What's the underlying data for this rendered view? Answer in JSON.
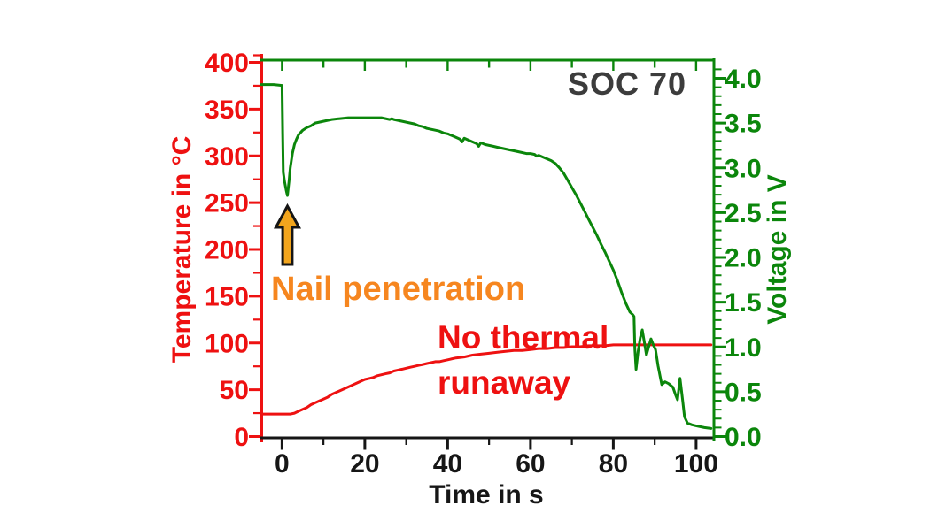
{
  "annotations": {
    "soc_label": "SOC 70",
    "nail_penetration": "Nail penetration",
    "no_thermal_line1": "No thermal",
    "no_thermal_line2": "runaway"
  },
  "colors": {
    "red": "#ee1111",
    "green": "#0b860b",
    "orange_text": "#f6861f",
    "arrow_fill": "#f2a51d",
    "arrow_outline": "#151515",
    "soc_gray": "#3c3c3c",
    "black": "#161616"
  },
  "chart_data": {
    "type": "line",
    "title": "",
    "x_axis": {
      "label": "Time in s",
      "range": [
        -5,
        104.3
      ],
      "tick_values": [
        0,
        20,
        40,
        60,
        80,
        100
      ],
      "tick_labels": [
        "0",
        "20",
        "40",
        "60",
        "80",
        "100"
      ],
      "minor_step": 10
    },
    "y_left": {
      "label": "Temperature in °C",
      "range": [
        0,
        400
      ],
      "tick_values": [
        0,
        50,
        100,
        150,
        200,
        250,
        300,
        350,
        400
      ],
      "tick_labels": [
        "0",
        "50",
        "100",
        "150",
        "200",
        "250",
        "300",
        "350",
        "400"
      ],
      "minor_step": 25
    },
    "y_right": {
      "label": "Voltage in V",
      "range": [
        0,
        4.0
      ],
      "tick_values": [
        0,
        0.5,
        1.0,
        1.5,
        2.0,
        2.5,
        3.0,
        3.5,
        4.0
      ],
      "tick_labels": [
        "0.0",
        "0.5",
        "1.0",
        "1.5",
        "2.0",
        "2.5",
        "3.0",
        "3.5",
        "4.0"
      ],
      "minor_step": 0.1
    },
    "grid": false,
    "legend": "none",
    "series": [
      {
        "name": "Temperature",
        "axis": "left",
        "color_key": "red",
        "points": [
          [
            -5,
            24
          ],
          [
            0,
            24
          ],
          [
            2,
            24
          ],
          [
            3,
            25
          ],
          [
            4,
            27
          ],
          [
            5,
            29
          ],
          [
            6,
            31
          ],
          [
            7,
            34
          ],
          [
            8,
            36
          ],
          [
            9,
            38
          ],
          [
            10,
            40
          ],
          [
            11,
            42
          ],
          [
            12,
            45
          ],
          [
            13,
            47
          ],
          [
            14,
            49
          ],
          [
            15,
            51
          ],
          [
            16,
            53
          ],
          [
            17,
            55
          ],
          [
            18,
            57
          ],
          [
            19,
            59
          ],
          [
            20,
            61
          ],
          [
            21,
            62
          ],
          [
            22,
            63
          ],
          [
            23,
            65
          ],
          [
            24,
            66
          ],
          [
            25,
            67
          ],
          [
            26,
            68
          ],
          [
            27,
            70
          ],
          [
            28,
            71
          ],
          [
            29,
            72
          ],
          [
            30,
            73
          ],
          [
            31,
            74
          ],
          [
            32,
            75
          ],
          [
            33,
            76
          ],
          [
            34,
            77
          ],
          [
            35,
            78
          ],
          [
            36,
            79
          ],
          [
            37,
            80
          ],
          [
            38,
            80
          ],
          [
            39,
            81
          ],
          [
            40,
            82
          ],
          [
            42,
            84
          ],
          [
            44,
            85
          ],
          [
            46,
            87
          ],
          [
            48,
            88
          ],
          [
            50,
            89
          ],
          [
            52,
            90
          ],
          [
            54,
            91
          ],
          [
            56,
            92
          ],
          [
            58,
            92
          ],
          [
            60,
            93
          ],
          [
            62,
            94
          ],
          [
            64,
            94
          ],
          [
            66,
            95
          ],
          [
            68,
            95
          ],
          [
            70,
            96
          ],
          [
            72,
            96
          ],
          [
            74,
            97
          ],
          [
            76,
            97
          ],
          [
            78,
            97
          ],
          [
            80,
            98
          ],
          [
            82,
            98
          ],
          [
            84,
            98
          ],
          [
            86,
            98
          ],
          [
            88,
            98
          ],
          [
            90,
            98
          ],
          [
            92,
            98
          ],
          [
            94,
            98
          ],
          [
            96,
            98
          ],
          [
            98,
            98
          ],
          [
            100,
            98
          ],
          [
            103.6,
            98
          ]
        ]
      },
      {
        "name": "Voltage",
        "axis": "right",
        "color_key": "green",
        "points": [
          [
            -5,
            3.93
          ],
          [
            -2,
            3.93
          ],
          [
            0,
            3.92
          ],
          [
            0.15,
            3.4
          ],
          [
            0.3,
            2.95
          ],
          [
            0.6,
            2.85
          ],
          [
            1,
            2.75
          ],
          [
            1.3,
            2.69
          ],
          [
            1.7,
            2.85
          ],
          [
            2,
            3.0
          ],
          [
            2.5,
            3.16
          ],
          [
            3,
            3.26
          ],
          [
            3.5,
            3.32
          ],
          [
            4,
            3.37
          ],
          [
            5,
            3.42
          ],
          [
            6,
            3.45
          ],
          [
            7,
            3.47
          ],
          [
            8,
            3.5
          ],
          [
            9,
            3.51
          ],
          [
            10,
            3.52
          ],
          [
            12,
            3.54
          ],
          [
            14,
            3.55
          ],
          [
            16,
            3.56
          ],
          [
            18,
            3.56
          ],
          [
            20,
            3.56
          ],
          [
            22,
            3.56
          ],
          [
            24,
            3.56
          ],
          [
            25,
            3.55
          ],
          [
            26,
            3.54
          ],
          [
            26.5,
            3.55
          ],
          [
            27,
            3.54
          ],
          [
            28,
            3.53
          ],
          [
            29,
            3.52
          ],
          [
            30,
            3.51
          ],
          [
            31,
            3.5
          ],
          [
            32,
            3.49
          ],
          [
            33,
            3.47
          ],
          [
            34,
            3.46
          ],
          [
            35,
            3.44
          ],
          [
            36,
            3.43
          ],
          [
            37,
            3.42
          ],
          [
            38,
            3.41
          ],
          [
            39,
            3.39
          ],
          [
            40,
            3.38
          ],
          [
            41,
            3.36
          ],
          [
            42,
            3.34
          ],
          [
            43,
            3.32
          ],
          [
            43.5,
            3.29
          ],
          [
            44,
            3.33
          ],
          [
            45,
            3.31
          ],
          [
            46,
            3.29
          ],
          [
            47,
            3.27
          ],
          [
            47.5,
            3.24
          ],
          [
            48,
            3.28
          ],
          [
            49,
            3.26
          ],
          [
            50,
            3.25
          ],
          [
            51,
            3.24
          ],
          [
            52,
            3.23
          ],
          [
            53,
            3.22
          ],
          [
            54,
            3.21
          ],
          [
            55,
            3.2
          ],
          [
            56,
            3.19
          ],
          [
            57,
            3.18
          ],
          [
            58,
            3.17
          ],
          [
            59,
            3.16
          ],
          [
            60,
            3.16
          ],
          [
            61,
            3.15
          ],
          [
            61.5,
            3.13
          ],
          [
            62,
            3.14
          ],
          [
            63,
            3.12
          ],
          [
            64,
            3.1
          ],
          [
            65,
            3.08
          ],
          [
            66,
            3.05
          ],
          [
            67,
            3.0
          ],
          [
            68,
            2.94
          ],
          [
            69,
            2.86
          ],
          [
            70,
            2.78
          ],
          [
            71,
            2.7
          ],
          [
            72,
            2.61
          ],
          [
            73,
            2.52
          ],
          [
            74,
            2.43
          ],
          [
            75,
            2.34
          ],
          [
            76,
            2.25
          ],
          [
            77,
            2.15
          ],
          [
            78,
            2.06
          ],
          [
            79,
            1.96
          ],
          [
            80,
            1.86
          ],
          [
            81,
            1.74
          ],
          [
            82,
            1.61
          ],
          [
            83,
            1.49
          ],
          [
            84,
            1.39
          ],
          [
            84.7,
            1.36
          ],
          [
            85,
            1.34
          ],
          [
            85.2,
            0.98
          ],
          [
            85.5,
            0.75
          ],
          [
            86,
            0.95
          ],
          [
            86.5,
            1.1
          ],
          [
            87,
            1.19
          ],
          [
            87.5,
            1.05
          ],
          [
            88,
            0.91
          ],
          [
            88.6,
            1.01
          ],
          [
            89.1,
            1.09
          ],
          [
            89.7,
            1.02
          ],
          [
            90.2,
            0.97
          ],
          [
            90.8,
            0.79
          ],
          [
            91.7,
            0.58
          ],
          [
            92.5,
            0.61
          ],
          [
            93.4,
            0.59
          ],
          [
            94.4,
            0.55
          ],
          [
            95,
            0.47
          ],
          [
            95.5,
            0.41
          ],
          [
            96.1,
            0.65
          ],
          [
            96.7,
            0.42
          ],
          [
            97.2,
            0.22
          ],
          [
            97.9,
            0.15
          ],
          [
            99,
            0.13
          ],
          [
            100,
            0.12
          ],
          [
            102,
            0.1
          ],
          [
            103.6,
            0.09
          ]
        ]
      }
    ],
    "event_marker": {
      "name": "nail-penetration-arrow",
      "time": 1.3,
      "points_at_voltage": 2.69
    }
  }
}
